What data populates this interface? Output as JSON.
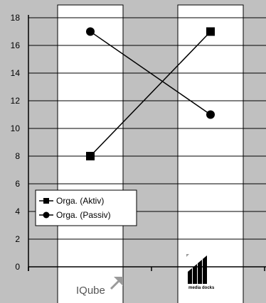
{
  "chart_data": {
    "type": "line",
    "categories": [
      "IQube",
      "media docks"
    ],
    "ylim": [
      0,
      18
    ],
    "yticks": [
      0,
      2,
      4,
      6,
      8,
      10,
      12,
      14,
      16,
      18
    ],
    "grid": true,
    "legend_position": "bottom-left",
    "series": [
      {
        "name": "Orga. (Aktiv)",
        "marker": "square",
        "values": [
          8,
          17
        ]
      },
      {
        "name": "Orga. (Passiv)",
        "marker": "circle",
        "values": [
          17,
          11
        ]
      }
    ]
  },
  "logos": {
    "iqube": {
      "text": "IQube",
      "icon": "arrow-up-right-icon",
      "color": "#9a9a9a"
    },
    "media_docks": {
      "text": "media docks",
      "icon": "media-docks-logo"
    }
  }
}
